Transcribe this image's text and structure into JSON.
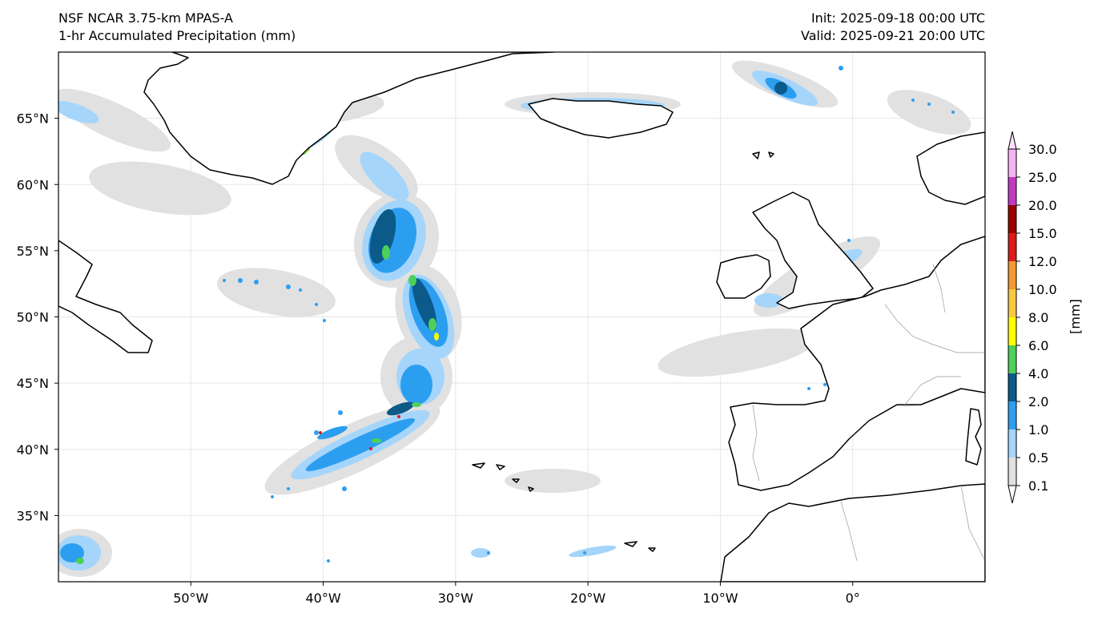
{
  "title": {
    "left_line1": "NSF NCAR 3.75-km MPAS-A",
    "left_line2": "1-hr Accumulated Precipitation (mm)",
    "right_line1": "Init: 2025-09-18 00:00 UTC",
    "right_line2": "Valid: 2025-09-21 20:00 UTC"
  },
  "map": {
    "extent": {
      "lon_min": -60,
      "lon_max": 10,
      "lat_min": 30,
      "lat_max": 70
    },
    "lon_ticks": [
      {
        "lon": -50,
        "label": "50°W"
      },
      {
        "lon": -40,
        "label": "40°W"
      },
      {
        "lon": -30,
        "label": "30°W"
      },
      {
        "lon": -20,
        "label": "20°W"
      },
      {
        "lon": -10,
        "label": "10°W"
      },
      {
        "lon": 0,
        "label": "0°"
      }
    ],
    "lat_ticks": [
      {
        "lat": 65,
        "label": "65°N"
      },
      {
        "lat": 60,
        "label": "60°N"
      },
      {
        "lat": 55,
        "label": "55°N"
      },
      {
        "lat": 50,
        "label": "50°N"
      },
      {
        "lat": 45,
        "label": "45°N"
      },
      {
        "lat": 40,
        "label": "40°N"
      },
      {
        "lat": 35,
        "label": "35°N"
      }
    ],
    "gridlines": true,
    "land_color": "#ffffff",
    "coastline_color": "#000000",
    "border_color": "#aaaaaa"
  },
  "colorbar": {
    "unit_label": "[mm]",
    "extend": "both",
    "levels": [
      "0.1",
      "0.5",
      "1.0",
      "2.0",
      "4.0",
      "6.0",
      "8.0",
      "10.0",
      "12.0",
      "15.0",
      "20.0",
      "25.0",
      "30.0"
    ],
    "colors": [
      "#e1e1e1",
      "#a5d5fa",
      "#2c9ef0",
      "#0b5a8a",
      "#4dd05a",
      "#ffff00",
      "#f8c840",
      "#f29a30",
      "#dc1a1a",
      "#9a0000",
      "#c23ac2",
      "#f4b4f4"
    ],
    "under_color": "#ffffff",
    "over_color": "#fce0fc"
  }
}
